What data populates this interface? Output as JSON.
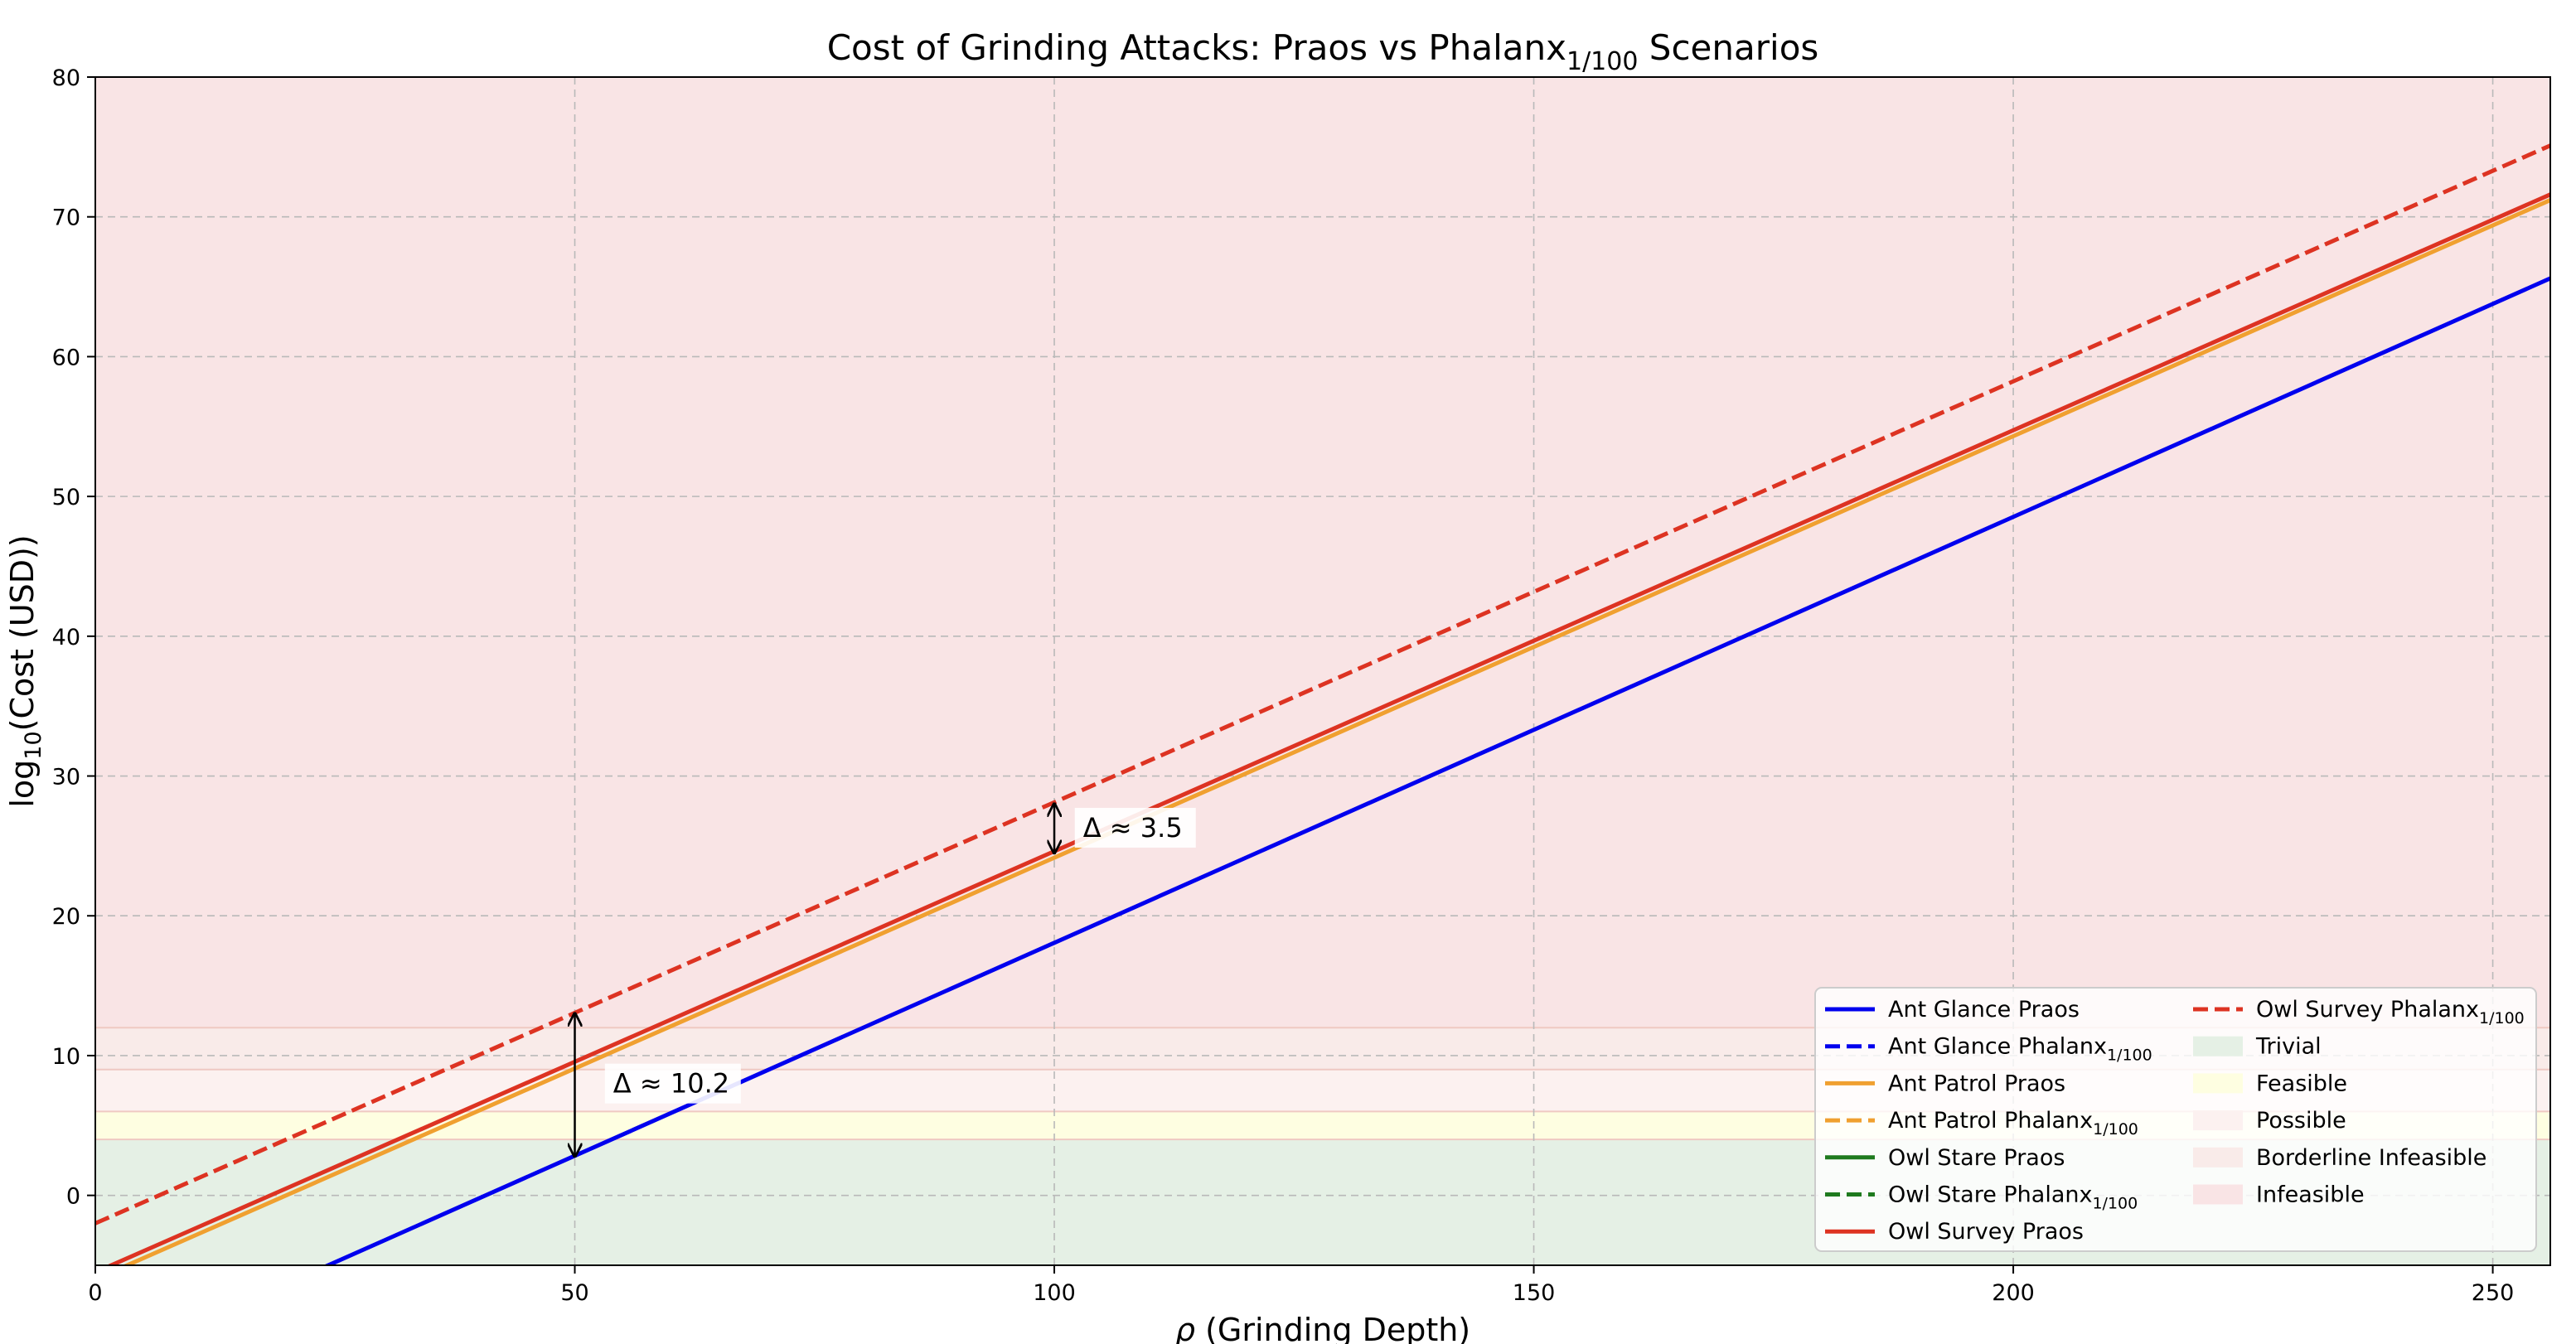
{
  "chart_data": {
    "type": "line",
    "title": "Cost of Grinding Attacks: Praos vs Phalanx",
    "title_sub": "1/100",
    "title_suffix": " Scenarios",
    "xlabel_symbol": "ρ",
    "xlabel": " (Grinding Depth)",
    "ylabel_prefix": "log",
    "ylabel_sub": "10",
    "ylabel_suffix": "(Cost (USD))",
    "xlim": [
      0,
      256
    ],
    "ylim": [
      -5,
      80
    ],
    "xticks": [
      0,
      50,
      100,
      150,
      200,
      250
    ],
    "yticks": [
      0,
      10,
      20,
      30,
      40,
      50,
      60,
      70,
      80
    ],
    "grid": true,
    "legend_position": "lower-right",
    "regions": [
      {
        "name": "Trivial",
        "from": -5,
        "to": 4,
        "color": "#e5f0e5"
      },
      {
        "name": "Feasible",
        "from": 4,
        "to": 6,
        "color": "#fefee1"
      },
      {
        "name": "Possible",
        "from": 6,
        "to": 9,
        "color": "#fcf1f0"
      },
      {
        "name": "Borderline Infeasible",
        "from": 9,
        "to": 12,
        "color": "#f9ebe9"
      },
      {
        "name": "Infeasible",
        "from": 12,
        "to": 80,
        "color": "#f9e4e5"
      }
    ],
    "series": [
      {
        "name": "Ant Glance Praos",
        "name_sub": "",
        "color": "#0000ee",
        "dash": "solid",
        "x": [
          0,
          256
        ],
        "y": [
          -12.4,
          65.6
        ]
      },
      {
        "name": "Ant Glance Phalanx",
        "name_sub": "1/100",
        "color": "#0000ee",
        "dash": "dashed",
        "x": [],
        "y": []
      },
      {
        "name": "Ant Patrol Praos",
        "name_sub": "",
        "color": "#f0a030",
        "dash": "solid",
        "x": [
          0,
          256
        ],
        "y": [
          -6.0,
          71.2
        ]
      },
      {
        "name": "Ant Patrol Phalanx",
        "name_sub": "1/100",
        "color": "#f0a030",
        "dash": "dashed",
        "x": [],
        "y": []
      },
      {
        "name": "Owl Stare Praos",
        "name_sub": "",
        "color": "#1e7a1e",
        "dash": "solid",
        "x": [],
        "y": []
      },
      {
        "name": "Owl Stare Phalanx",
        "name_sub": "1/100",
        "color": "#1e7a1e",
        "dash": "dashed",
        "x": [],
        "y": []
      },
      {
        "name": "Owl Survey Praos",
        "name_sub": "",
        "color": "#dd3322",
        "dash": "solid",
        "x": [
          0,
          256
        ],
        "y": [
          -5.5,
          71.6
        ]
      },
      {
        "name": "Owl Survey Phalanx",
        "name_sub": "1/100",
        "color": "#dd3322",
        "dash": "dashed",
        "x": [
          0,
          256
        ],
        "y": [
          -2.0,
          75.1
        ]
      }
    ],
    "annotations": [
      {
        "label": "Δ ≈ 10.2",
        "x": 50,
        "y_from": 2.8,
        "y_to": 13.0,
        "label_x": 54,
        "label_y": 8.0
      },
      {
        "label": "Δ ≈ 3.5",
        "x": 100,
        "y_from": 24.5,
        "y_to": 28.0,
        "label_x": 103,
        "label_y": 26.3
      }
    ]
  }
}
